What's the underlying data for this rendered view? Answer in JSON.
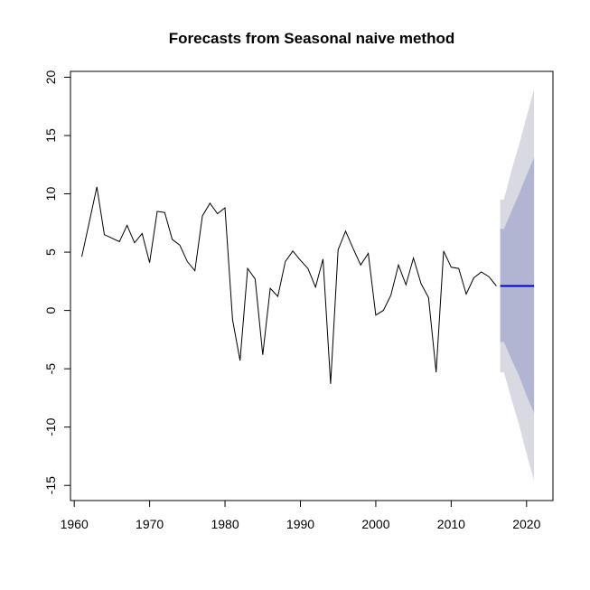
{
  "chart_data": {
    "type": "line",
    "title": "Forecasts from Seasonal naive method",
    "xlabel": "",
    "ylabel": "",
    "xlim": [
      1959.5,
      2023.5
    ],
    "ylim": [
      -16.3,
      20.5
    ],
    "xticks": [
      1960,
      1970,
      1980,
      1990,
      2000,
      2010,
      2020
    ],
    "yticks": [
      -15,
      -10,
      -5,
      0,
      5,
      10,
      15,
      20
    ],
    "grid": false,
    "legend": "none",
    "series": [
      {
        "role": "observed",
        "color": "#000000",
        "x": [
          1961,
          1962,
          1963,
          1964,
          1965,
          1966,
          1967,
          1968,
          1969,
          1970,
          1971,
          1972,
          1973,
          1974,
          1975,
          1976,
          1977,
          1978,
          1979,
          1980,
          1981,
          1982,
          1983,
          1984,
          1985,
          1986,
          1987,
          1988,
          1989,
          1990,
          1991,
          1992,
          1993,
          1994,
          1995,
          1996,
          1997,
          1998,
          1999,
          2000,
          2001,
          2002,
          2003,
          2004,
          2005,
          2006,
          2007,
          2008,
          2009,
          2010,
          2011,
          2012,
          2013,
          2014,
          2015,
          2016
        ],
        "y": [
          4.6,
          7.6,
          10.6,
          6.5,
          6.2,
          5.9,
          7.3,
          5.8,
          6.6,
          4.1,
          8.5,
          8.4,
          6.1,
          5.6,
          4.2,
          3.4,
          8.1,
          9.2,
          8.3,
          8.8,
          -0.8,
          -4.3,
          3.6,
          2.7,
          -3.8,
          1.9,
          1.2,
          4.2,
          5.1,
          4.3,
          3.6,
          2.0,
          4.4,
          -6.3,
          5.2,
          6.8,
          5.3,
          3.9,
          4.9,
          -0.4,
          0.0,
          1.3,
          3.9,
          2.2,
          4.5,
          2.3,
          1.1,
          -5.3,
          5.1,
          3.7,
          3.6,
          1.4,
          2.8,
          3.3,
          2.9,
          2.1
        ]
      },
      {
        "role": "point-forecast",
        "color": "#0000cc",
        "x": [
          2016.5,
          2021
        ],
        "y": [
          2.1,
          2.1
        ]
      }
    ],
    "bands": [
      {
        "role": "95-interval",
        "color": "#d9d9e1",
        "x": [
          2016.5,
          2017,
          2018,
          2019,
          2020,
          2021
        ],
        "lower": [
          -5.3,
          -5.3,
          -7.6,
          -9.8,
          -12.3,
          -14.6
        ],
        "upper": [
          9.5,
          9.5,
          12.0,
          14.2,
          16.6,
          19.0
        ]
      },
      {
        "role": "80-interval",
        "color": "#b1b5d1",
        "x": [
          2016.5,
          2017,
          2018,
          2019,
          2020,
          2021
        ],
        "lower": [
          -2.7,
          -2.7,
          -4.2,
          -5.6,
          -7.3,
          -8.8
        ],
        "upper": [
          7.0,
          7.0,
          8.5,
          10.0,
          11.6,
          13.1
        ]
      }
    ]
  }
}
